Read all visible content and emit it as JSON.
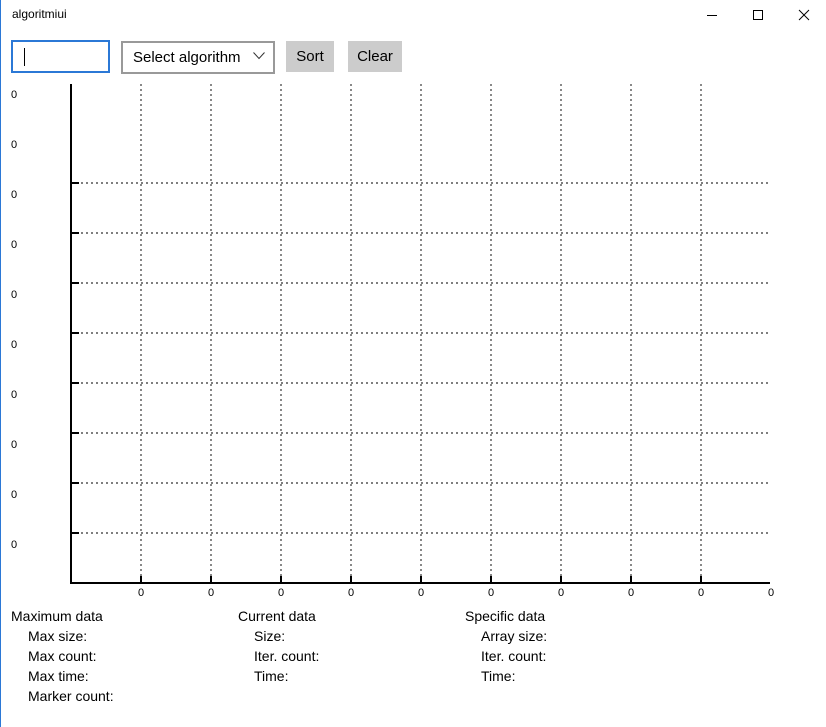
{
  "window": {
    "title": "algoritmiui"
  },
  "toolbar": {
    "input_value": "",
    "select_placeholder": "Select algorithm",
    "sort_label": "Sort",
    "clear_label": "Clear"
  },
  "chart_data": {
    "type": "line",
    "y_tick_labels": [
      "0",
      "0",
      "0",
      "0",
      "0",
      "0",
      "0",
      "0",
      "0",
      "0"
    ],
    "x_tick_labels": [
      "0",
      "0",
      "0",
      "0",
      "0",
      "0",
      "0",
      "0",
      "0",
      "0"
    ],
    "grid": true,
    "series": []
  },
  "stats": {
    "maximum": {
      "header": "Maximum data",
      "max_size": "Max size:",
      "max_count": "Max count:",
      "max_time": "Max time:",
      "marker_count": "Marker count:"
    },
    "current": {
      "header": "Current data",
      "size": "Size:",
      "iter_count": "Iter. count:",
      "time": "Time:"
    },
    "specific": {
      "header": "Specific data",
      "array_size": "Array size:",
      "iter_count": "Iter. count:",
      "time": "Time:"
    }
  }
}
